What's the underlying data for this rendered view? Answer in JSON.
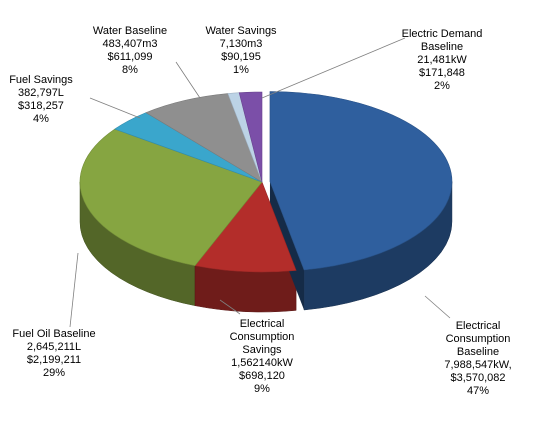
{
  "chart_data": {
    "type": "pie",
    "style": "3d-exploded-pie",
    "title": "",
    "legend": "none",
    "slices": [
      {
        "key": "elec_cons",
        "label_lines": [
          "Electrical",
          "Consumption",
          "Baseline",
          "7,988,547kW,",
          "$3,570,082",
          "47%"
        ],
        "amount": "7,988,547kW",
        "cost": "$3,570,082",
        "percent": 47,
        "color": "#2f5f9e"
      },
      {
        "key": "elec_sav",
        "label_lines": [
          "Electrical",
          "Consumption",
          "Savings",
          "1,562140kW",
          "$698,120",
          "9%"
        ],
        "amount": "1,562140kW",
        "cost": "$698,120",
        "percent": 9,
        "color": "#b32d2a"
      },
      {
        "key": "fuel_base",
        "label_lines": [
          "Fuel Oil Baseline",
          "2,645,211L",
          "$2,199,211",
          "29%"
        ],
        "amount": "2,645,211L",
        "cost": "$2,199,211",
        "percent": 29,
        "color": "#86a541"
      },
      {
        "key": "fuel_sav",
        "label_lines": [
          "Fuel Savings",
          "382,797L",
          "$318,257",
          "4%"
        ],
        "amount": "382,797L",
        "cost": "$318,257",
        "percent": 4,
        "color": "#3aa6cc"
      },
      {
        "key": "water_base",
        "label_lines": [
          "Water  Baseline",
          "483,407m3",
          "$611,099",
          "8%"
        ],
        "amount": "483,407m3",
        "cost": "$611,099",
        "percent": 8,
        "color": "#8f8f8f"
      },
      {
        "key": "water_sav",
        "label_lines": [
          "Water Savings",
          "7,130m3",
          "$90,195",
          "1%"
        ],
        "amount": "7,130m3",
        "cost": "$90,195",
        "percent": 1,
        "color": "#bcd3e6"
      },
      {
        "key": "elec_dem",
        "label_lines": [
          "Electric Demand",
          "Baseline",
          "21,481kW",
          "$171,848",
          "2%"
        ],
        "amount": "21,481kW",
        "cost": "$171,848",
        "percent": 2,
        "color": "#7b4fa8"
      }
    ]
  }
}
